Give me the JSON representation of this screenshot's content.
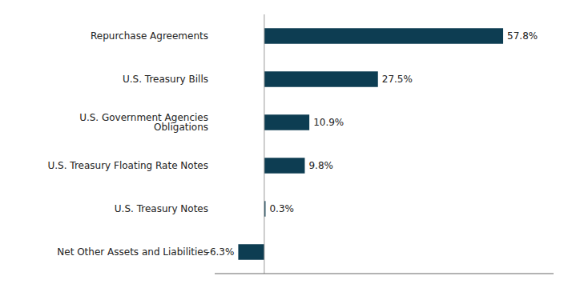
{
  "chart_data": {
    "type": "bar",
    "orientation": "horizontal",
    "categories": [
      "Net Other Assets and Liabilities",
      "U.S. Treasury Notes",
      "U.S. Treasury Floating Rate Notes",
      "U.S. Government Agencies Obligations",
      "U.S. Treasury Bills",
      "Repurchase Agreements"
    ],
    "values": [
      -6.3,
      0.3,
      9.8,
      10.9,
      27.5,
      57.8
    ],
    "value_labels": [
      "-6.3%",
      "0.3%",
      "9.8%",
      "10.9%",
      "27.5%",
      "57.8%"
    ],
    "color": "#0d3d52",
    "xlim": [
      -12,
      70
    ],
    "data_labels": true,
    "tick_labels": "y",
    "grid": false
  }
}
